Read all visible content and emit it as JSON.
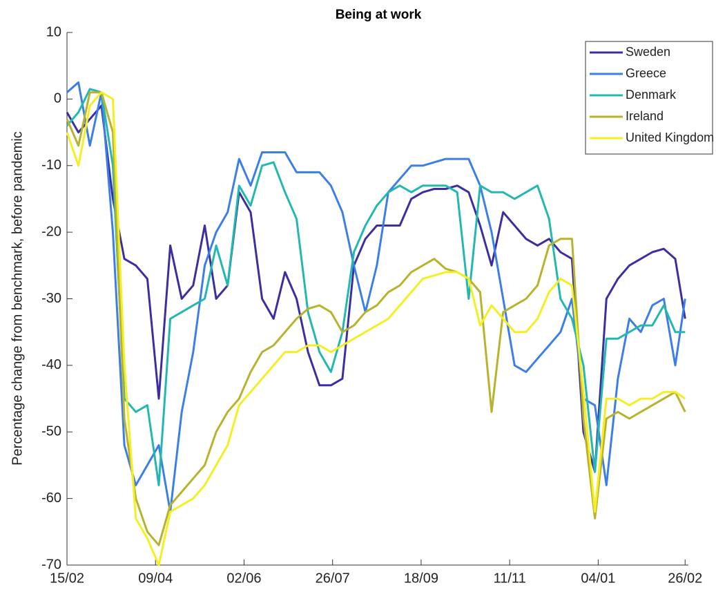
{
  "chart_data": {
    "type": "line",
    "title": "Being at work",
    "ylabel": "Percentage change from benchmark, before pandemic",
    "x": [
      0,
      7,
      14,
      21,
      28,
      35,
      42,
      49,
      56,
      63,
      70,
      77,
      84,
      91,
      98,
      105,
      112,
      119,
      126,
      133,
      140,
      147,
      154,
      161,
      168,
      175,
      182,
      189,
      196,
      203,
      210,
      217,
      224,
      231,
      238,
      245,
      252,
      259,
      266,
      273,
      280,
      287,
      294,
      301,
      308,
      315,
      322,
      329,
      336,
      343,
      350,
      357,
      364,
      371,
      377
    ],
    "xlim": [
      0,
      379
    ],
    "xticks": [
      {
        "value": 0,
        "label": "15/02"
      },
      {
        "value": 54,
        "label": "09/04"
      },
      {
        "value": 108,
        "label": "02/06"
      },
      {
        "value": 162,
        "label": "26/07"
      },
      {
        "value": 216,
        "label": "18/09"
      },
      {
        "value": 270,
        "label": "11/11"
      },
      {
        "value": 324,
        "label": "04/01"
      },
      {
        "value": 377,
        "label": "26/02"
      }
    ],
    "ylim": [
      -70,
      10
    ],
    "yticks": [
      -70,
      -60,
      -50,
      -40,
      -30,
      -20,
      -10,
      0,
      10
    ],
    "legend": "upper right",
    "series": [
      {
        "name": "Sweden",
        "color": "#3b2ea0",
        "values": [
          -2,
          -5,
          -3,
          -1,
          -15,
          -24,
          -25,
          -27,
          -45,
          -22,
          -30,
          -28,
          -19,
          -30,
          -28,
          -14,
          -17,
          -30,
          -33,
          -26,
          -30,
          -38,
          -43,
          -43,
          -42,
          -25,
          -21,
          -19,
          -19,
          -19,
          -15,
          -14,
          -13.5,
          -13.5,
          -13,
          -14,
          -19,
          -25,
          -17,
          -19,
          -21,
          -22,
          -21,
          -23,
          -24,
          -50,
          -56,
          -30,
          -27,
          -25,
          -24,
          -23,
          -22.5,
          -24,
          -33
        ]
      },
      {
        "name": "Greece",
        "color": "#3c7ee8",
        "values": [
          1,
          2.5,
          -7,
          1,
          -20,
          -52,
          -58,
          -55,
          -52,
          -62,
          -47,
          -38,
          -25,
          -20,
          -17,
          -9,
          -13,
          -8,
          -8,
          -8,
          -11,
          -11,
          -11,
          -13,
          -17,
          -25,
          -32,
          -25,
          -14,
          -12,
          -10,
          -10,
          -9.5,
          -9,
          -9,
          -9,
          -13,
          -20,
          -30,
          -40,
          -41,
          -39,
          -37,
          -35,
          -30,
          -45,
          -46,
          -58,
          -42,
          -33,
          -35,
          -31,
          -30,
          -40,
          -30
        ]
      },
      {
        "name": "Denmark",
        "color": "#22b8b0",
        "values": [
          -4,
          -2,
          1.5,
          1,
          -10,
          -45,
          -47,
          -46,
          -58,
          -33,
          -32,
          -31,
          -30,
          -22,
          -28,
          -13,
          -16,
          -10,
          -9.5,
          -14,
          -18,
          -32,
          -38,
          -41,
          -35,
          -23,
          -19,
          -16,
          -14,
          -13,
          -14,
          -13,
          -13,
          -13,
          -14,
          -30,
          -13,
          -14,
          -14,
          -15,
          -14,
          -13,
          -18,
          -30,
          -33,
          -40,
          -56,
          -36,
          -36,
          -35,
          -34,
          -34,
          -31,
          -35,
          -35
        ]
      },
      {
        "name": "Ireland",
        "color": "#b8b22c",
        "values": [
          -3,
          -7,
          1,
          1,
          -5,
          -48,
          -60,
          -65,
          -67,
          -61,
          -59,
          -57,
          -55,
          -50,
          -47,
          -45,
          -41,
          -38,
          -37,
          -35,
          -33,
          -31.5,
          -31,
          -32,
          -35,
          -34,
          -32,
          -31,
          -29,
          -28,
          -26,
          -25,
          -24,
          -25.5,
          -26,
          -27,
          -29,
          -47,
          -32,
          -31,
          -30,
          -28,
          -22,
          -21,
          -21,
          -48,
          -63,
          -48,
          -47,
          -48,
          -47,
          -46,
          -45,
          -44,
          -47
        ]
      },
      {
        "name": "United Kingdom",
        "color": "#f4ee22",
        "values": [
          -5,
          -10,
          -1,
          1,
          0,
          -40,
          -63,
          -66,
          -70,
          -62,
          -61,
          -60,
          -58,
          -55,
          -52,
          -46,
          -44,
          -42,
          -40,
          -38,
          -38,
          -37,
          -37,
          -38,
          -37,
          -36,
          -35,
          -34,
          -33,
          -31,
          -29,
          -27,
          -26.5,
          -26,
          -26,
          -27,
          -34,
          -31,
          -33,
          -35,
          -35,
          -33,
          -29,
          -27,
          -28,
          -44,
          -62,
          -45,
          -45,
          -46,
          -45,
          -45,
          -44,
          -44,
          -45
        ]
      }
    ]
  }
}
